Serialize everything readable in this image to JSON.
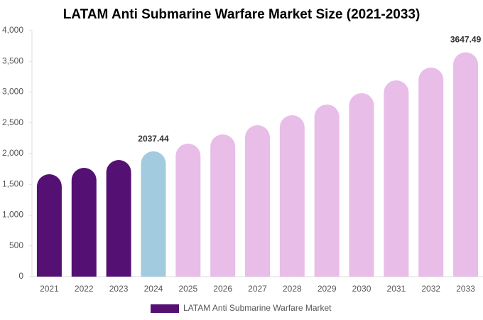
{
  "chart_data": {
    "type": "bar",
    "title": "LATAM Anti Submarine Warfare Market Size (2021-2033)",
    "categories": [
      "2021",
      "2022",
      "2023",
      "2024",
      "2025",
      "2026",
      "2027",
      "2028",
      "2029",
      "2030",
      "2031",
      "2032",
      "2033"
    ],
    "series": [
      {
        "name": "LATAM Anti Submarine Warfare Market",
        "color": "#541173",
        "values": [
          1665,
          1769,
          1896,
          2037.44,
          2162,
          2312,
          2462,
          2624,
          2798,
          2983,
          3191,
          3399,
          3647.49
        ],
        "value_labels": [
          null,
          null,
          null,
          "2037.44",
          null,
          null,
          null,
          null,
          null,
          null,
          null,
          null,
          "3647.49"
        ],
        "colors": [
          "#541173",
          "#541173",
          "#541173",
          "#a3cbe0",
          "#e8bde8",
          "#e8bde8",
          "#e8bde8",
          "#e8bde8",
          "#e8bde8",
          "#e8bde8",
          "#e8bde8",
          "#e8bde8",
          "#e8bde8"
        ]
      }
    ],
    "ylim": [
      0,
      4000
    ],
    "yticks": [
      0,
      500,
      {
        "value": 1000,
        "label": "1,000"
      },
      {
        "value": 1500,
        "label": "1,500"
      },
      {
        "value": 2000,
        "label": "2,000"
      },
      {
        "value": 2500,
        "label": "2,500"
      },
      {
        "value": 3000,
        "label": "3,000"
      },
      {
        "value": 3500,
        "label": "3,500"
      },
      {
        "value": 4000,
        "label": "4,000"
      }
    ],
    "grid": false,
    "legend": "bottom"
  }
}
